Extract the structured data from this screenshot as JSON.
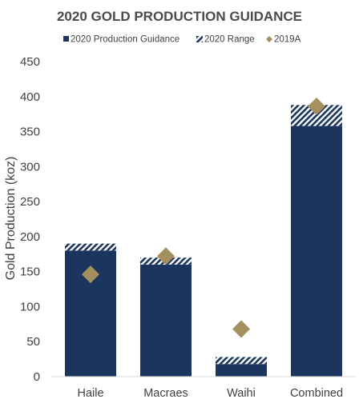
{
  "chart_data": {
    "type": "bar",
    "title": "2020 GOLD PRODUCTION GUIDANCE",
    "xlabel": "",
    "ylabel": "Gold Production (koz)",
    "ylim": [
      0,
      450
    ],
    "yticks": [
      0,
      50,
      100,
      150,
      200,
      250,
      300,
      350,
      400,
      450
    ],
    "grid": false,
    "legend_position": "top",
    "categories": [
      "Haile",
      "Macraes",
      "Waihi",
      "Combined"
    ],
    "series": [
      {
        "name": "2020 Production Guidance",
        "kind": "stacked-bar-base",
        "color": "#1c355e",
        "values": [
          180,
          160,
          18,
          358
        ]
      },
      {
        "name": "2020 Range",
        "kind": "stacked-bar-range",
        "color": "#1c355e",
        "values": [
          10,
          10,
          10,
          30
        ]
      },
      {
        "name": "2019A",
        "kind": "marker-diamond",
        "color": "#a48f5f",
        "values": [
          146,
          172,
          68,
          386
        ]
      }
    ]
  }
}
